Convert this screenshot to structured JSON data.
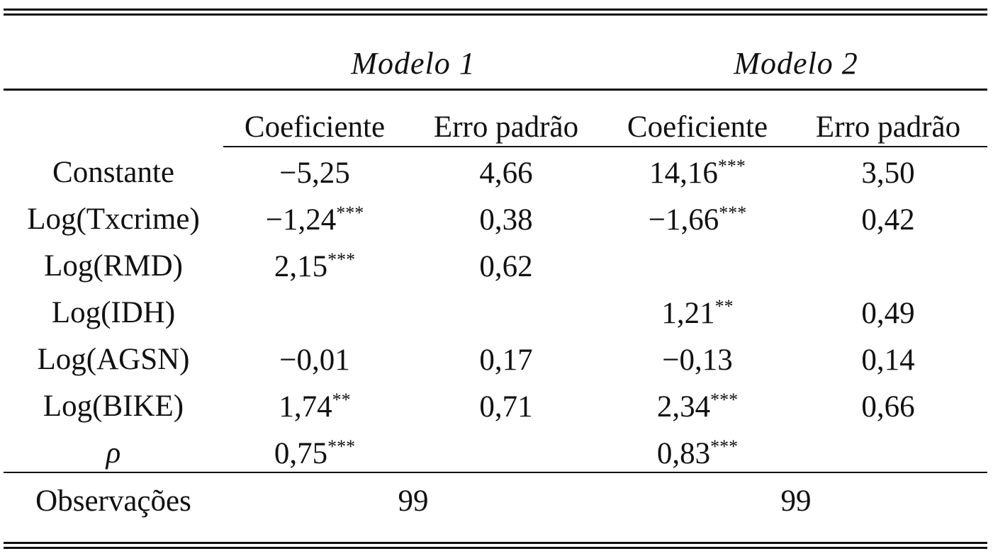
{
  "table": {
    "models": [
      "Modelo 1",
      "Modelo 2"
    ],
    "columns": [
      "Coeficiente",
      "Erro padrão",
      "Coeficiente",
      "Erro padrão"
    ],
    "rows": [
      {
        "label": "Constante",
        "cells": [
          {
            "v": "−5,25",
            "s": ""
          },
          {
            "v": "4,66",
            "s": ""
          },
          {
            "v": "14,16",
            "s": "***"
          },
          {
            "v": "3,50",
            "s": ""
          }
        ]
      },
      {
        "label": "Log(Txcrime)",
        "cells": [
          {
            "v": "−1,24",
            "s": "***"
          },
          {
            "v": "0,38",
            "s": ""
          },
          {
            "v": "−1,66",
            "s": "***"
          },
          {
            "v": "0,42",
            "s": ""
          }
        ]
      },
      {
        "label": "Log(RMD)",
        "cells": [
          {
            "v": "2,15",
            "s": "***"
          },
          {
            "v": "0,62",
            "s": ""
          },
          {
            "v": "",
            "s": ""
          },
          {
            "v": "",
            "s": ""
          }
        ]
      },
      {
        "label": "Log(IDH)",
        "cells": [
          {
            "v": "",
            "s": ""
          },
          {
            "v": "",
            "s": ""
          },
          {
            "v": "1,21",
            "s": "**"
          },
          {
            "v": "0,49",
            "s": ""
          }
        ]
      },
      {
        "label": "Log(AGSN)",
        "cells": [
          {
            "v": "−0,01",
            "s": ""
          },
          {
            "v": "0,17",
            "s": ""
          },
          {
            "v": "−0,13",
            "s": ""
          },
          {
            "v": "0,14",
            "s": ""
          }
        ]
      },
      {
        "label": "Log(BIKE)",
        "cells": [
          {
            "v": "1,74",
            "s": "**"
          },
          {
            "v": "0,71",
            "s": ""
          },
          {
            "v": "2,34",
            "s": "***"
          },
          {
            "v": "0,66",
            "s": ""
          }
        ]
      },
      {
        "label": "ρ",
        "cells": [
          {
            "v": "0,75",
            "s": "***"
          },
          {
            "v": "",
            "s": ""
          },
          {
            "v": "0,83",
            "s": "***"
          },
          {
            "v": "",
            "s": ""
          }
        ]
      }
    ],
    "footer": {
      "label": "Observações",
      "values": [
        "99",
        "99"
      ]
    }
  }
}
